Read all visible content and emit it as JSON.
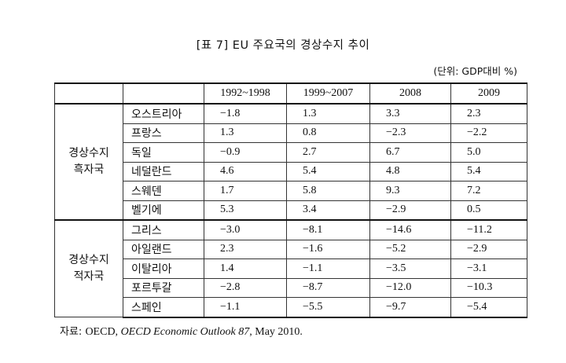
{
  "title": "[표 7] EU 주요국의 경상수지 추이",
  "unit": "(단위: GDP대비 %)",
  "columns": [
    "1992~1998",
    "1999~2007",
    "2008",
    "2009"
  ],
  "groups": [
    {
      "label_line1": "경상수지",
      "label_line2": "흑자국",
      "rows": [
        {
          "country": "오스트리아",
          "values": [
            "−1.8",
            "1.3",
            "3.3",
            "2.3"
          ]
        },
        {
          "country": "프랑스",
          "values": [
            "1.3",
            "0.8",
            "−2.3",
            "−2.2"
          ]
        },
        {
          "country": "독일",
          "values": [
            "−0.9",
            "2.7",
            "6.7",
            "5.0"
          ]
        },
        {
          "country": "네덜란드",
          "values": [
            "4.6",
            "5.4",
            "4.8",
            "5.4"
          ]
        },
        {
          "country": "스웨덴",
          "values": [
            "1.7",
            "5.8",
            "9.3",
            "7.2"
          ]
        },
        {
          "country": "벨기에",
          "values": [
            "5.3",
            "3.4",
            "−2.9",
            "0.5"
          ]
        }
      ]
    },
    {
      "label_line1": "경상수지",
      "label_line2": "적자국",
      "rows": [
        {
          "country": "그리스",
          "values": [
            "−3.0",
            "−8.1",
            "−14.6",
            "−11.2"
          ]
        },
        {
          "country": "아일랜드",
          "values": [
            "2.3",
            "−1.6",
            "−5.2",
            "−2.9"
          ]
        },
        {
          "country": "이탈리아",
          "values": [
            "1.4",
            "−1.1",
            "−3.5",
            "−3.1"
          ]
        },
        {
          "country": "포르투갈",
          "values": [
            "−2.8",
            "−8.7",
            "−12.0",
            "−10.3"
          ]
        },
        {
          "country": "스페인",
          "values": [
            "−1.1",
            "−5.5",
            "−9.7",
            "−5.4"
          ]
        }
      ]
    }
  ],
  "source": {
    "prefix": "자료: ",
    "org": "OECD, ",
    "publication": "OECD Economic Outlook 87",
    "date": ", May 2010."
  }
}
